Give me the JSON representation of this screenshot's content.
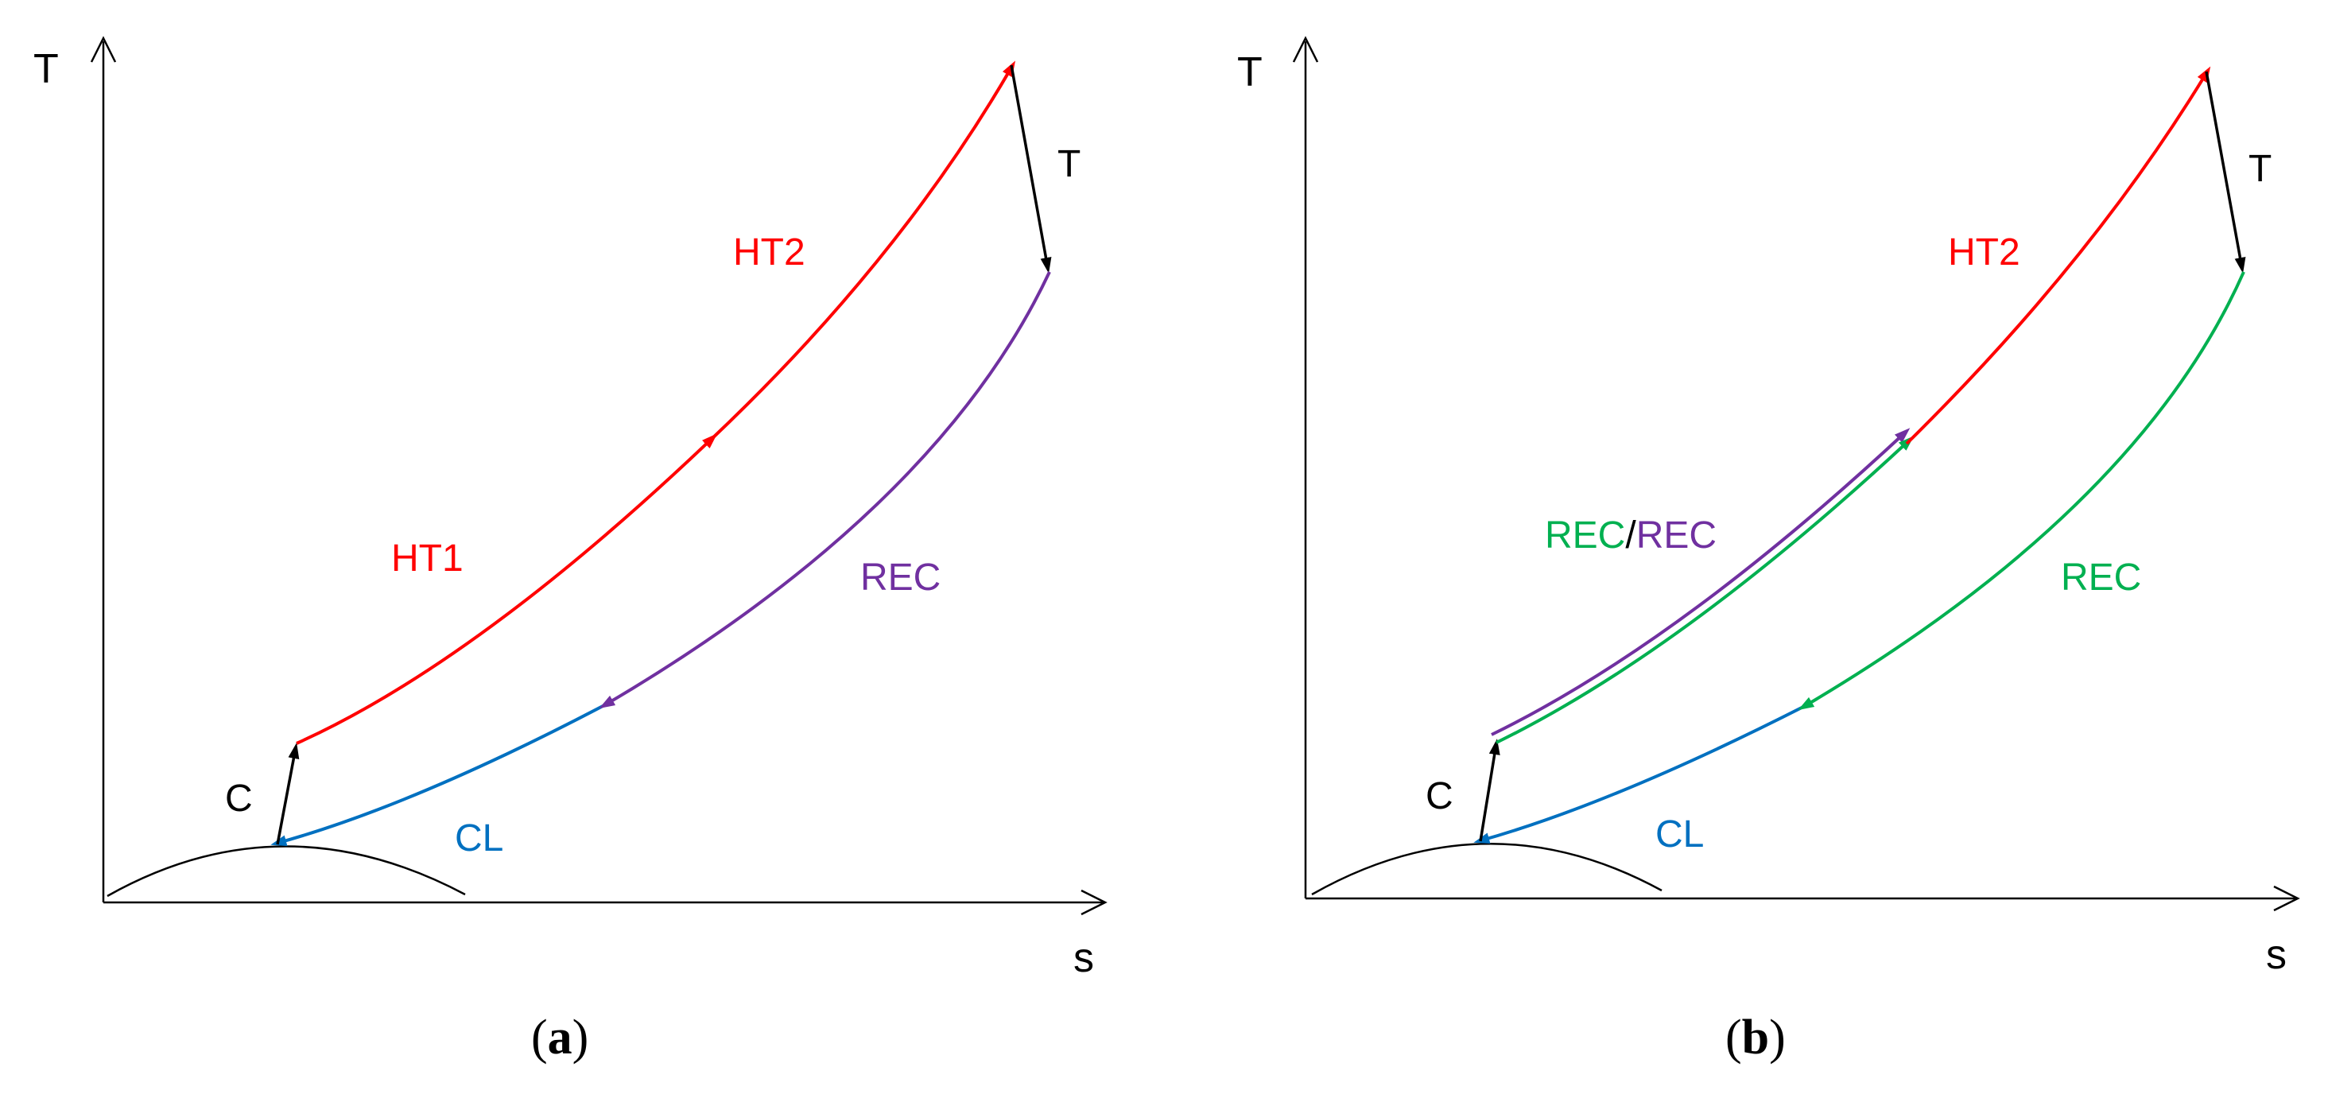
{
  "colors": {
    "axis": "#000000",
    "heat_addition": "#ff0000",
    "recuperator_a": "#7030a0",
    "recuperator_b": "#00b050",
    "cooler": "#0070c0",
    "compressor_turbine": "#000000"
  },
  "panels": [
    {
      "axes": {
        "y_label": "T",
        "x_label": "s"
      },
      "labels": {
        "compressor": "C",
        "turbine": "T",
        "cooler": "CL",
        "heater_1": "HT1",
        "heater_2": "HT2",
        "recuperator": "REC"
      },
      "caption": {
        "open": "(",
        "letter": "a",
        "close": ")"
      }
    },
    {
      "axes": {
        "y_label": "T",
        "x_label": "s"
      },
      "labels": {
        "compressor": "C",
        "turbine": "T",
        "cooler": "CL",
        "heater_2": "HT2",
        "recuperator_pair_left": "REC",
        "recuperator_pair_sep": "/",
        "recuperator_pair_right": "REC",
        "recuperator": "REC"
      },
      "caption": {
        "open": "(",
        "letter": "b",
        "close": ")"
      }
    }
  ]
}
